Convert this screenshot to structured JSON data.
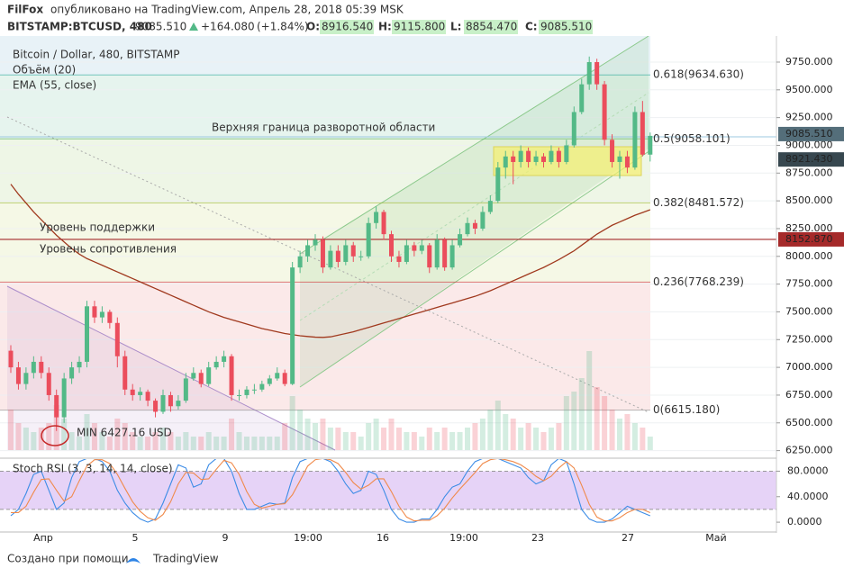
{
  "header": {
    "author": "FilFox",
    "published": "опубликовано на TradingView.com, Апрель 28, 2018 05:39 MSK",
    "symbol": "BITSTAMP:BTCUSD, 480",
    "price": {
      "value": 9085.51,
      "label": "9085.510"
    },
    "change": {
      "value": 164.08,
      "label": "+164.080"
    },
    "change_pct": {
      "value": 1.84,
      "label": "(+1.84%)"
    },
    "ohlc": [
      {
        "key": "O:",
        "value": 8916.54,
        "label": "8916.540"
      },
      {
        "key": "H:",
        "value": 9115.8,
        "label": "9115.800"
      },
      {
        "key": "L:",
        "value": 8854.47,
        "label": "8854.470"
      },
      {
        "key": "C:",
        "value": 9085.51,
        "label": "9085.510"
      }
    ]
  },
  "chart_data": {
    "type": "candlestick",
    "title": "Bitcoin / Dollar, 480, BITSTAMP",
    "volume_label": "Объём (20)",
    "ema_label": "EMA (55, close)",
    "up_color": "#53b987",
    "down_color": "#eb4d5c",
    "ema_color": "#a0391e",
    "ylim": [
      6190,
      9985
    ],
    "yticks": [
      {
        "value": 6250,
        "label": "6250.000"
      },
      {
        "value": 6500,
        "label": "6500.000"
      },
      {
        "value": 6750,
        "label": "6750.000"
      },
      {
        "value": 7000,
        "label": "7000.000"
      },
      {
        "value": 7250,
        "label": "7250.000"
      },
      {
        "value": 7500,
        "label": "7500.000"
      },
      {
        "value": 7750,
        "label": "7750.000"
      },
      {
        "value": 8000,
        "label": "8000.000"
      },
      {
        "value": 8250,
        "label": "8250.000"
      },
      {
        "value": 8500,
        "label": "8500.000"
      },
      {
        "value": 8750,
        "label": "8750.000"
      },
      {
        "value": 9000,
        "label": "9000.000"
      },
      {
        "value": 9250,
        "label": "9250.000"
      },
      {
        "value": 9500,
        "label": "9500.000"
      },
      {
        "value": 9750,
        "label": "9750.000"
      }
    ],
    "date_labels": [
      "Апр",
      "5",
      "9",
      "19:00",
      "16",
      "19:00",
      "23",
      "27",
      "Май"
    ],
    "candles": [
      [
        7150,
        7200,
        6950,
        7000
      ],
      [
        7000,
        7050,
        6800,
        6850
      ],
      [
        6850,
        7000,
        6800,
        6950
      ],
      [
        6950,
        7100,
        6900,
        7050
      ],
      [
        7050,
        7100,
        6900,
        6950
      ],
      [
        6950,
        7000,
        6700,
        6750
      ],
      [
        6750,
        6800,
        6427.16,
        6550
      ],
      [
        6550,
        6950,
        6500,
        6900
      ],
      [
        6900,
        7050,
        6850,
        7000
      ],
      [
        7000,
        7100,
        6950,
        7050
      ],
      [
        7050,
        7600,
        7000,
        7550
      ],
      [
        7550,
        7600,
        7400,
        7450
      ],
      [
        7450,
        7550,
        7400,
        7500
      ],
      [
        7500,
        7520,
        7350,
        7400
      ],
      [
        7400,
        7450,
        7000,
        7100
      ],
      [
        7100,
        7150,
        6750,
        6800
      ],
      [
        6800,
        6850,
        6700,
        6750
      ],
      [
        6750,
        6820,
        6700,
        6780
      ],
      [
        6780,
        6800,
        6650,
        6700
      ],
      [
        6700,
        6720,
        6550,
        6600
      ],
      [
        6600,
        6800,
        6580,
        6750
      ],
      [
        6750,
        6780,
        6600,
        6650
      ],
      [
        6650,
        6750,
        6620,
        6700
      ],
      [
        6700,
        6950,
        6680,
        6900
      ],
      [
        6900,
        7000,
        6880,
        6950
      ],
      [
        6950,
        6980,
        6820,
        6850
      ],
      [
        6850,
        7050,
        6830,
        7000
      ],
      [
        7000,
        7100,
        6980,
        7050
      ],
      [
        7050,
        7150,
        7000,
        7100
      ],
      [
        7100,
        7120,
        6700,
        6750
      ],
      [
        6750,
        6800,
        6700,
        6750
      ],
      [
        6750,
        6830,
        6720,
        6800
      ],
      [
        6800,
        6850,
        6760,
        6800
      ],
      [
        6800,
        6880,
        6780,
        6850
      ],
      [
        6850,
        6930,
        6830,
        6900
      ],
      [
        6900,
        7000,
        6880,
        6950
      ],
      [
        6950,
        6980,
        6830,
        6850
      ],
      [
        6850,
        7950,
        6840,
        7900
      ],
      [
        7900,
        8050,
        7850,
        8000
      ],
      [
        8000,
        8150,
        7950,
        8100
      ],
      [
        8100,
        8200,
        8050,
        8150
      ],
      [
        8150,
        8180,
        7850,
        7900
      ],
      [
        7900,
        8100,
        7880,
        8050
      ],
      [
        8050,
        8100,
        7900,
        7950
      ],
      [
        7950,
        8150,
        7920,
        8100
      ],
      [
        8100,
        8130,
        7950,
        8000
      ],
      [
        8000,
        8050,
        7960,
        8000
      ],
      [
        8000,
        8350,
        7980,
        8300
      ],
      [
        8300,
        8450,
        8250,
        8400
      ],
      [
        8400,
        8420,
        8150,
        8200
      ],
      [
        8200,
        8230,
        7950,
        8000
      ],
      [
        8000,
        8050,
        7900,
        7950
      ],
      [
        7950,
        8150,
        7930,
        8100
      ],
      [
        8100,
        8130,
        8000,
        8050
      ],
      [
        8050,
        8150,
        8020,
        8100
      ],
      [
        8100,
        8120,
        7850,
        7900
      ],
      [
        7900,
        8200,
        7880,
        8150
      ],
      [
        8150,
        8170,
        7870,
        7900
      ],
      [
        7900,
        8150,
        7880,
        8100
      ],
      [
        8100,
        8250,
        8080,
        8200
      ],
      [
        8200,
        8350,
        8180,
        8300
      ],
      [
        8300,
        8330,
        8200,
        8250
      ],
      [
        8250,
        8450,
        8230,
        8400
      ],
      [
        8400,
        8550,
        8380,
        8500
      ],
      [
        8500,
        8850,
        8480,
        8800
      ],
      [
        8800,
        8950,
        8700,
        8900
      ],
      [
        8900,
        8950,
        8650,
        8850
      ],
      [
        8850,
        9000,
        8800,
        8950
      ],
      [
        8950,
        8980,
        8800,
        8850
      ],
      [
        8850,
        8950,
        8820,
        8900
      ],
      [
        8900,
        8930,
        8800,
        8850
      ],
      [
        8850,
        9000,
        8830,
        8950
      ],
      [
        8950,
        8980,
        8800,
        8850
      ],
      [
        8850,
        9050,
        8830,
        9000
      ],
      [
        9000,
        9350,
        8980,
        9300
      ],
      [
        9300,
        9600,
        9280,
        9550
      ],
      [
        9550,
        9800,
        9500,
        9750
      ],
      [
        9750,
        9780,
        9500,
        9550
      ],
      [
        9550,
        9580,
        9000,
        9050
      ],
      [
        9050,
        9100,
        8800,
        8850
      ],
      [
        8850,
        8950,
        8700,
        8900
      ],
      [
        8900,
        8950,
        8750,
        8800
      ],
      [
        8800,
        9350,
        8780,
        9300
      ],
      [
        9300,
        9400,
        8900,
        8916.54
      ],
      [
        8916.54,
        9115.8,
        8854.47,
        9085.51
      ]
    ],
    "ema": [
      8650,
      8560,
      8480,
      8400,
      8330,
      8260,
      8190,
      8130,
      8070,
      8020,
      7980,
      7950,
      7920,
      7890,
      7860,
      7830,
      7800,
      7770,
      7740,
      7710,
      7680,
      7650,
      7620,
      7590,
      7560,
      7530,
      7500,
      7475,
      7450,
      7430,
      7410,
      7390,
      7370,
      7350,
      7335,
      7320,
      7305,
      7295,
      7285,
      7278,
      7272,
      7270,
      7275,
      7290,
      7305,
      7320,
      7340,
      7360,
      7380,
      7400,
      7420,
      7440,
      7460,
      7480,
      7500,
      7520,
      7540,
      7560,
      7580,
      7600,
      7620,
      7640,
      7665,
      7690,
      7720,
      7750,
      7780,
      7810,
      7840,
      7870,
      7900,
      7935,
      7970,
      8010,
      8050,
      8100,
      8150,
      8200,
      8240,
      8280,
      8310,
      8340,
      8370,
      8395,
      8420
    ],
    "volume": [
      45,
      30,
      25,
      20,
      25,
      30,
      50,
      35,
      20,
      15,
      40,
      30,
      20,
      15,
      35,
      30,
      20,
      15,
      15,
      20,
      25,
      20,
      15,
      20,
      15,
      15,
      20,
      15,
      15,
      35,
      20,
      15,
      15,
      15,
      15,
      15,
      30,
      60,
      45,
      35,
      30,
      35,
      25,
      25,
      20,
      20,
      15,
      30,
      35,
      25,
      35,
      25,
      20,
      20,
      15,
      25,
      20,
      25,
      20,
      20,
      25,
      30,
      35,
      45,
      55,
      40,
      35,
      25,
      30,
      25,
      20,
      25,
      30,
      60,
      65,
      80,
      110,
      70,
      60,
      45,
      35,
      40,
      30,
      25,
      15
    ],
    "fib_levels": [
      {
        "value": 9634.63,
        "label": "0.618(9634.630)",
        "color": "#26a69a"
      },
      {
        "value": 9058.101,
        "label": "0.5(9058.101)",
        "color": "#4caf50"
      },
      {
        "value": 8481.572,
        "label": "0.382(8481.572)",
        "color": "#9ab32a"
      },
      {
        "value": 7768.239,
        "label": "0.236(7768.239)",
        "color": "#c62828"
      },
      {
        "value": 6615.18,
        "label": "0(6615.180)",
        "color": "#888888"
      }
    ],
    "price_tags": [
      {
        "value": 9085.51,
        "label": "9085.510",
        "color": "#546e7a"
      },
      {
        "value": 8921.43,
        "label": "8921.430",
        "color": "#37474f"
      },
      {
        "value": 8152.87,
        "label": "8152.870",
        "color": "#a52a2a"
      }
    ],
    "annotations": {
      "reversal": "Верхняя граница разворотной области",
      "support": "Уровень поддержки",
      "resistance": "Уровень сопротивления",
      "min": "MIN 6427.16 USD"
    },
    "stoch": {
      "title": "Stoch RSI (3, 3, 14, 14, close)",
      "ylim": [
        -14,
        99
      ],
      "yticks": [
        {
          "value": 80,
          "label": "80.0000"
        },
        {
          "value": 40,
          "label": "40.0000"
        },
        {
          "value": 0,
          "label": "0.0000"
        }
      ],
      "bands": [
        80,
        20
      ],
      "k": {
        "color": "#3c8ce6",
        "values": [
          10,
          20,
          45,
          75,
          80,
          50,
          20,
          30,
          70,
          95,
          100,
          100,
          95,
          80,
          50,
          30,
          15,
          5,
          0,
          5,
          30,
          60,
          90,
          85,
          55,
          60,
          90,
          100,
          100,
          80,
          45,
          20,
          20,
          25,
          30,
          28,
          30,
          70,
          95,
          100,
          100,
          100,
          95,
          80,
          60,
          45,
          50,
          80,
          75,
          50,
          20,
          5,
          0,
          0,
          5,
          5,
          20,
          40,
          55,
          60,
          80,
          95,
          100,
          100,
          100,
          95,
          90,
          85,
          70,
          60,
          65,
          90,
          100,
          95,
          60,
          20,
          5,
          0,
          0,
          5,
          15,
          25,
          20,
          15,
          10
        ]
      },
      "d": {
        "color": "#f08a4b",
        "values": [
          15,
          15,
          25,
          47,
          67,
          68,
          50,
          33,
          40,
          65,
          88,
          98,
          98,
          92,
          75,
          53,
          32,
          17,
          7,
          3,
          12,
          32,
          60,
          78,
          77,
          67,
          68,
          83,
          97,
          93,
          75,
          48,
          28,
          22,
          25,
          28,
          29,
          43,
          65,
          88,
          98,
          100,
          98,
          92,
          78,
          62,
          52,
          58,
          68,
          68,
          48,
          25,
          8,
          2,
          3,
          3,
          10,
          22,
          38,
          52,
          65,
          78,
          92,
          98,
          100,
          98,
          95,
          90,
          82,
          72,
          65,
          72,
          85,
          95,
          85,
          58,
          28,
          8,
          2,
          2,
          7,
          15,
          20,
          20,
          15
        ]
      }
    }
  },
  "footer": {
    "made_with": "Создано при помощи",
    "brand": "TradingView"
  }
}
